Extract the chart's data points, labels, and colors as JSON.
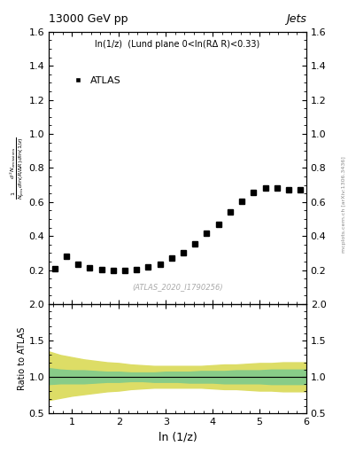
{
  "title_left": "13000 GeV pp",
  "title_right": "Jets",
  "subtitle": "ln(1/z)  (Lund plane 0<ln(RΔ R)<0.33)",
  "watermark": "(ATLAS_2020_I1790256)",
  "ylabel_main": "$\\frac{1}{N_{\\mathrm{jets}}}\\frac{d^2 N_{\\mathrm{emissions}}}{d\\ln(R/\\Delta R)\\,d\\ln(1/z)}$",
  "ylabel_ratio": "Ratio to ATLAS",
  "xlabel": "ln (1/z)",
  "legend_label": "ATLAS",
  "side_label": "mcplots.cern.ch [arXiv:1306.3436]",
  "x_data": [
    0.625,
    0.875,
    1.125,
    1.375,
    1.625,
    1.875,
    2.125,
    2.375,
    2.625,
    2.875,
    3.125,
    3.375,
    3.625,
    3.875,
    4.125,
    4.375,
    4.625,
    4.875,
    5.125,
    5.375,
    5.625,
    5.875
  ],
  "y_data": [
    0.21,
    0.28,
    0.235,
    0.215,
    0.205,
    0.2,
    0.2,
    0.205,
    0.22,
    0.235,
    0.27,
    0.3,
    0.355,
    0.415,
    0.47,
    0.54,
    0.605,
    0.655,
    0.685,
    0.685,
    0.67,
    0.67
  ],
  "xlim": [
    0.5,
    6.0
  ],
  "ylim_main": [
    0.0,
    1.6
  ],
  "ylim_ratio": [
    0.5,
    2.0
  ],
  "yticks_main": [
    0.2,
    0.4,
    0.6,
    0.8,
    1.0,
    1.2,
    1.4,
    1.6
  ],
  "yticks_ratio": [
    0.5,
    1.0,
    1.5,
    2.0
  ],
  "xticks": [
    1,
    2,
    3,
    4,
    5,
    6
  ],
  "ratio_x": [
    0.5,
    0.75,
    1.0,
    1.25,
    1.5,
    1.75,
    2.0,
    2.25,
    2.5,
    2.75,
    3.0,
    3.25,
    3.5,
    3.75,
    4.0,
    4.25,
    4.5,
    4.75,
    5.0,
    5.25,
    5.5,
    5.75,
    6.0
  ],
  "ratio_green_upper": [
    1.12,
    1.1,
    1.09,
    1.09,
    1.08,
    1.07,
    1.07,
    1.06,
    1.06,
    1.06,
    1.07,
    1.07,
    1.07,
    1.08,
    1.08,
    1.08,
    1.09,
    1.09,
    1.09,
    1.1,
    1.1,
    1.1,
    1.1
  ],
  "ratio_green_lower": [
    0.9,
    0.91,
    0.91,
    0.91,
    0.92,
    0.93,
    0.93,
    0.94,
    0.94,
    0.93,
    0.93,
    0.93,
    0.92,
    0.92,
    0.92,
    0.91,
    0.91,
    0.91,
    0.91,
    0.9,
    0.9,
    0.9,
    0.9
  ],
  "ratio_yellow_upper": [
    1.35,
    1.3,
    1.27,
    1.24,
    1.22,
    1.2,
    1.19,
    1.17,
    1.16,
    1.15,
    1.15,
    1.15,
    1.15,
    1.15,
    1.16,
    1.17,
    1.17,
    1.18,
    1.19,
    1.19,
    1.2,
    1.2,
    1.2
  ],
  "ratio_yellow_lower": [
    0.68,
    0.71,
    0.74,
    0.76,
    0.78,
    0.8,
    0.81,
    0.83,
    0.84,
    0.85,
    0.85,
    0.85,
    0.85,
    0.85,
    0.84,
    0.83,
    0.83,
    0.82,
    0.81,
    0.81,
    0.8,
    0.8,
    0.8
  ],
  "marker_color": "black",
  "marker": "s",
  "marker_size": 4,
  "green_color": "#88cc88",
  "yellow_color": "#dddd66",
  "ratio_line_color": "black",
  "background_color": "white"
}
